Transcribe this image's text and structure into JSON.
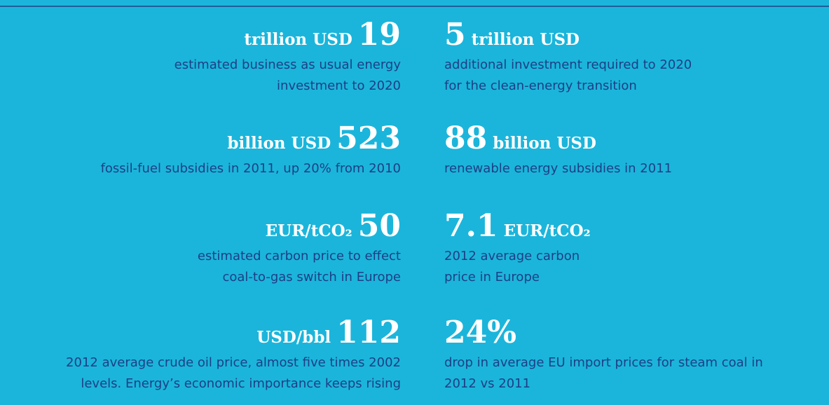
{
  "left": [
    {
      "value": "19",
      "unit": "trillion USD",
      "lines": [
        "estimated business as usual energy",
        "investment to 2020"
      ]
    },
    {
      "value": "523",
      "unit": "billion USD",
      "lines": [
        "fossil-fuel subsidies in 2011, up 20% from 2010"
      ]
    },
    {
      "value": "50",
      "unit": "EUR/tCO₂",
      "lines": [
        "estimated carbon price to effect",
        "coal-to-gas switch in Europe"
      ]
    },
    {
      "value": "112",
      "unit": "USD/bbl",
      "lines": [
        "2012 average crude oil price, almost five times 2002",
        "levels. Energy’s economic importance keeps rising"
      ]
    }
  ],
  "right": [
    {
      "value": "5",
      "unit": "trillion USD",
      "lines": [
        "additional investment required to 2020",
        "for the clean-energy transition"
      ]
    },
    {
      "value": "88",
      "unit": "billion USD",
      "lines": [
        "renewable energy subsidies in 2011"
      ]
    },
    {
      "value": "7.1",
      "unit": "EUR/tCO₂",
      "lines": [
        "2012 average carbon",
        "price in Europe"
      ]
    },
    {
      "value": "24%",
      "unit": null,
      "lines": [
        "drop in average EU import prices for steam coal in",
        "2012 vs 2011"
      ]
    }
  ]
}
